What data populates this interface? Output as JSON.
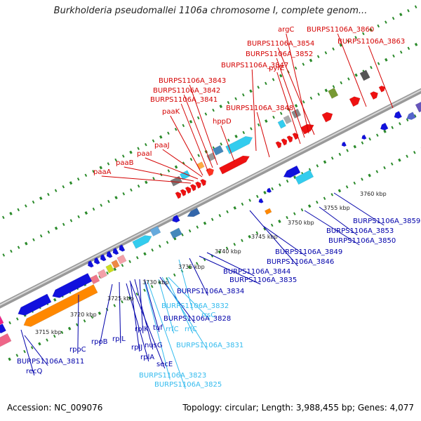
{
  "title": "Burkholderia pseudomallei 1106a chromosome I, complete genom...",
  "footer": {
    "accession": "Accession: NC_009076",
    "stats": "Topology: circular; Length: 3,988,455 bp; Genes: 4,077"
  },
  "colors": {
    "red_label": "#d40000",
    "blue_label": "#0000aa",
    "cyan_label": "#33bbee",
    "red_gene": "#ee1111",
    "blue_gene": "#1111dd",
    "orange_gene": "#ff8800",
    "cyan_gene": "#33ccee",
    "pink_gene": "#ee7788",
    "green_tick": "#2a8a2a",
    "backbone": "#999999"
  },
  "scale_ticks": [
    "3715 kbp",
    "3720 kbp",
    "3725 kbp",
    "3730 kbp",
    "3735 kbp",
    "3740 kbp",
    "3745 kbp",
    "3750 kbp",
    "3755 kbp",
    "3760 kbp"
  ],
  "labels_top": [
    "argC",
    "BURPS1106A_3860",
    "BURPS1106A_3854",
    "BURPS1106A_3863",
    "BURPS1106A_3852",
    "BURPS1106A_3847",
    "pyrE",
    "BURPS1106A_3843",
    "BURPS1106A_3842",
    "BURPS1106A_3841",
    "BURPS1106A_3848",
    "paaK",
    "hppD",
    "paaJ",
    "paaI",
    "paaB",
    "paaA"
  ],
  "labels_bottom_blue": [
    "BURPS1106A_3859",
    "BURPS1106A_3853",
    "BURPS1106A_3850",
    "BURPS1106A_3849",
    "BURPS1106A_3846",
    "BURPS1106A_3844",
    "BURPS1106A_3835",
    "BURPS1106A_3834",
    "BURPS1106A_3828",
    "tuf",
    "rplK",
    "nusG",
    "rplJ",
    "rplA",
    "rplL",
    "secE",
    "rpoB",
    "rpoC",
    "BURPS1106A_3811",
    "recQ"
  ],
  "labels_bottom_cyan": [
    "BURPS1106A_3832",
    "rrsC",
    "rrfC",
    "rrlC",
    "BURPS1106A_3831",
    "BURPS1106A_3823",
    "BURPS1106A_3825"
  ]
}
